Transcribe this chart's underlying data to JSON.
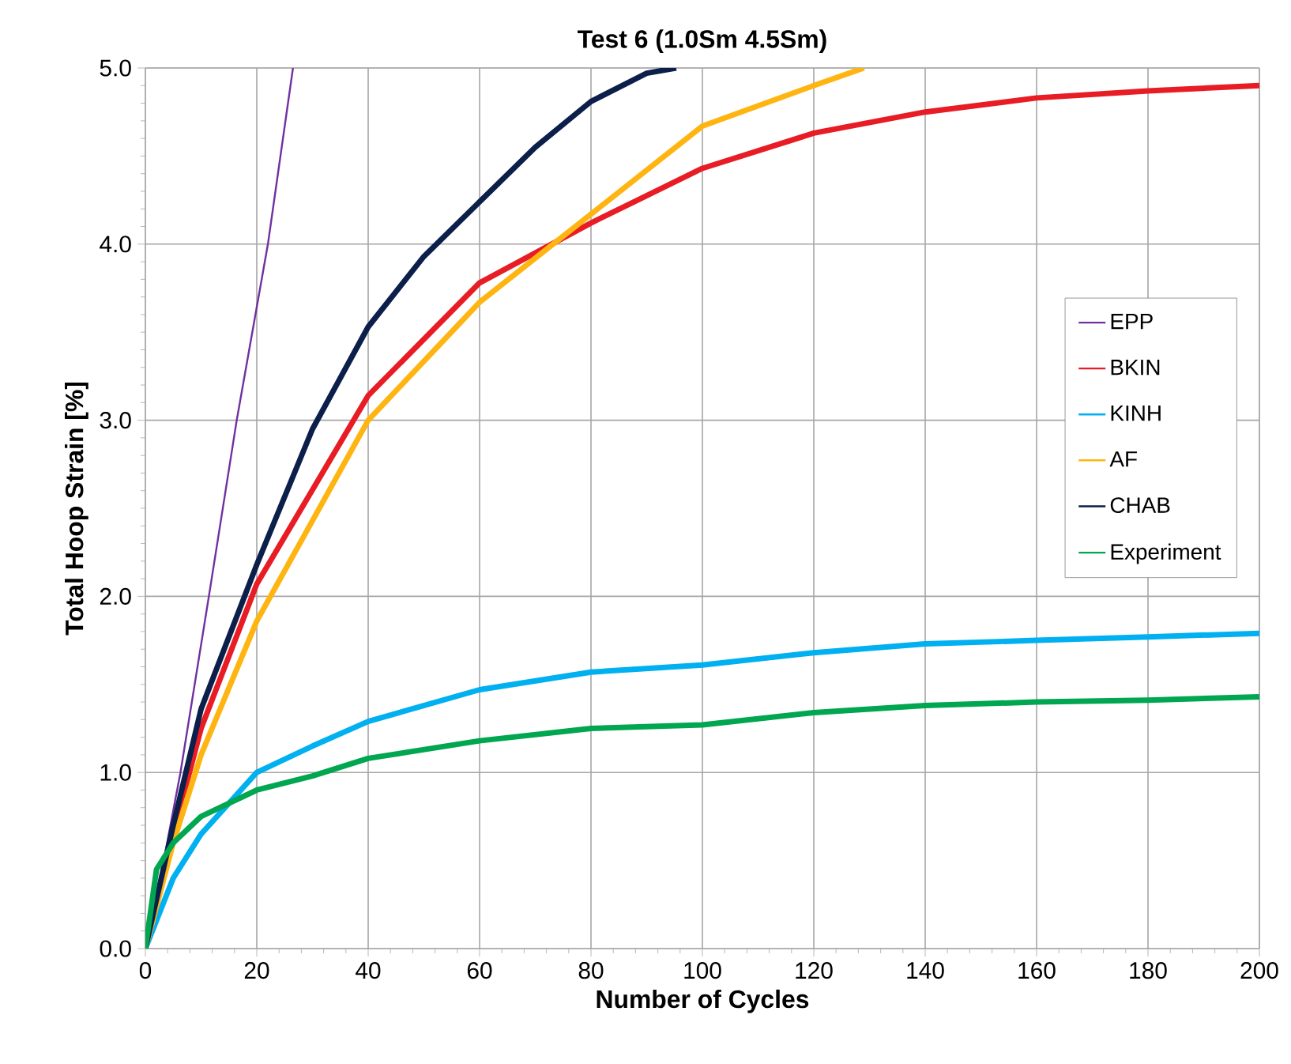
{
  "chart_data": {
    "type": "line",
    "title": "Test 6  (1.0Sm 4.5Sm)",
    "xlabel": "Number of Cycles",
    "ylabel": "Total Hoop Strain [%]",
    "xlim": [
      0,
      200
    ],
    "ylim": [
      0,
      5
    ],
    "xticks": [
      0,
      20,
      40,
      60,
      80,
      100,
      120,
      140,
      160,
      180,
      200
    ],
    "yticks": [
      {
        "value": 0,
        "label": "0.0"
      },
      {
        "value": 1,
        "label": "1.0"
      },
      {
        "value": 2,
        "label": "2.0"
      },
      {
        "value": 3,
        "label": "3.0"
      },
      {
        "value": 4,
        "label": "4.0"
      },
      {
        "value": 5,
        "label": "5.0"
      }
    ],
    "grid": true,
    "legend": "right",
    "marker": "none",
    "line_style": "solid",
    "series": [
      {
        "name": "EPP",
        "color": "#7030a0",
        "x": [
          0,
          3,
          6.3,
          11.4,
          16.4,
          22,
          26.5
        ],
        "values": [
          0,
          0.45,
          1.0,
          2.0,
          3.0,
          4.0,
          5.0
        ]
      },
      {
        "name": "BKIN",
        "color": "#e81c24",
        "x": [
          0,
          5,
          10,
          20,
          40,
          60,
          80,
          100,
          120,
          140,
          160,
          180,
          200
        ],
        "values": [
          0,
          0.65,
          1.25,
          2.07,
          3.14,
          3.78,
          4.12,
          4.43,
          4.63,
          4.75,
          4.83,
          4.87,
          4.9
        ]
      },
      {
        "name": "KINH",
        "color": "#00b0f0",
        "x": [
          0,
          5,
          10,
          20,
          30,
          40,
          60,
          80,
          100,
          120,
          140,
          160,
          180,
          200
        ],
        "values": [
          0,
          0.4,
          0.65,
          1.0,
          1.15,
          1.29,
          1.47,
          1.57,
          1.61,
          1.68,
          1.73,
          1.75,
          1.77,
          1.79
        ]
      },
      {
        "name": "AF",
        "color": "#ffb511",
        "x": [
          0,
          5,
          10,
          20,
          40,
          60,
          80,
          100,
          120,
          129
        ],
        "values": [
          0,
          0.6,
          1.1,
          1.86,
          3.0,
          3.67,
          4.17,
          4.67,
          4.9,
          5.0
        ]
      },
      {
        "name": "CHAB",
        "color": "#0c1f4a",
        "x": [
          0,
          5,
          10,
          20,
          30,
          40,
          50,
          60,
          70,
          80,
          90,
          95.3
        ],
        "values": [
          0,
          0.7,
          1.36,
          2.18,
          2.95,
          3.53,
          3.93,
          4.24,
          4.55,
          4.81,
          4.97,
          5.0
        ]
      },
      {
        "name": "Experiment",
        "color": "#00a650",
        "x": [
          0,
          2,
          5,
          10,
          20,
          30,
          40,
          60,
          80,
          100,
          120,
          140,
          160,
          180,
          200
        ],
        "values": [
          0,
          0.45,
          0.6,
          0.75,
          0.9,
          0.98,
          1.08,
          1.18,
          1.25,
          1.27,
          1.34,
          1.38,
          1.4,
          1.41,
          1.43
        ]
      }
    ]
  }
}
